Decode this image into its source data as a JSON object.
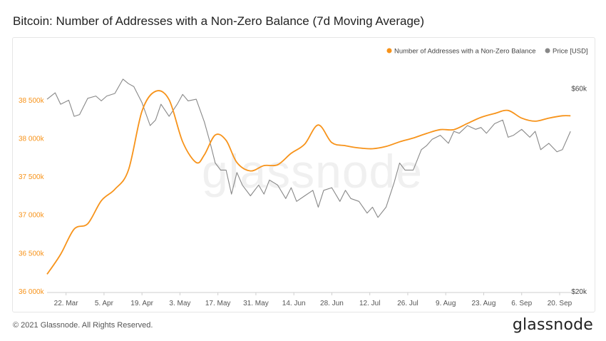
{
  "title": "Bitcoin: Number of Addresses with a Non-Zero Balance (7d Moving Average)",
  "footer": {
    "copyright": "© 2021 Glassnode. All Rights Reserved.",
    "logo": "glassnode"
  },
  "watermark": "glassnode",
  "colors": {
    "addresses": "#f7931a",
    "price": "#888888",
    "left_axis_text": "#f7931a",
    "right_axis_text": "#444444"
  },
  "chart_data": {
    "type": "line",
    "title": "Bitcoin: Number of Addresses with a Non-Zero Balance (7d Moving Average)",
    "legend_position": "top-right",
    "x_labels": [
      "22. Mar",
      "5. Apr",
      "19. Apr",
      "3. May",
      "17. May",
      "31. May",
      "14. Jun",
      "28. Jun",
      "12. Jul",
      "26. Jul",
      "9. Aug",
      "23. Aug",
      "6. Sep",
      "20. Sep"
    ],
    "x_range_days": [
      0,
      194
    ],
    "left_axis": {
      "ticks": [
        "36 000k",
        "36 500k",
        "37 000k",
        "37 500k",
        "38 000k",
        "38 500k"
      ],
      "tick_values": [
        36000,
        36500,
        37000,
        37500,
        38000,
        38500
      ],
      "ylim": [
        36000,
        38750
      ],
      "unit": "k"
    },
    "right_axis": {
      "ticks": [
        "$20k",
        "$60k"
      ],
      "tick_values": [
        20,
        60
      ],
      "ylim": [
        20,
        62.5
      ],
      "scale": "log",
      "unit": "k USD"
    },
    "series": [
      {
        "name": "Number of Addresses with a Non-Zero Balance",
        "axis": "left",
        "color": "#f7931a",
        "x": [
          0,
          5,
          10,
          15,
          20,
          25,
          30,
          35,
          40,
          45,
          50,
          55,
          58,
          62,
          66,
          70,
          75,
          80,
          85,
          90,
          95,
          100,
          105,
          110,
          115,
          120,
          125,
          130,
          135,
          140,
          145,
          150,
          155,
          160,
          165,
          170,
          175,
          180,
          185,
          190,
          193
        ],
        "values": [
          36220,
          36480,
          36810,
          36880,
          37180,
          37330,
          37580,
          38350,
          38610,
          38500,
          37950,
          37680,
          37780,
          38040,
          37970,
          37680,
          37570,
          37640,
          37650,
          37800,
          37920,
          38170,
          37940,
          37900,
          37870,
          37860,
          37890,
          37950,
          38000,
          38060,
          38110,
          38110,
          38190,
          38270,
          38320,
          38360,
          38260,
          38220,
          38260,
          38290,
          38290
        ]
      },
      {
        "name": "Price [USD]",
        "axis": "right",
        "color": "#888888",
        "x": [
          0,
          3,
          5,
          8,
          10,
          12,
          15,
          18,
          20,
          22,
          25,
          28,
          30,
          32,
          35,
          38,
          40,
          42,
          45,
          48,
          50,
          52,
          55,
          58,
          60,
          62,
          64,
          66,
          68,
          70,
          72,
          75,
          78,
          80,
          82,
          85,
          88,
          90,
          92,
          95,
          98,
          100,
          102,
          105,
          108,
          110,
          112,
          115,
          118,
          120,
          122,
          125,
          128,
          130,
          132,
          135,
          138,
          140,
          142,
          145,
          148,
          150,
          152,
          155,
          158,
          160,
          162,
          165,
          168,
          170,
          172,
          175,
          178,
          180,
          182,
          185,
          188,
          190,
          193
        ],
        "values": [
          56.5,
          58.5,
          55.0,
          56.2,
          51.5,
          52.0,
          56.8,
          57.5,
          56.0,
          57.5,
          58.3,
          63.0,
          61.5,
          60.5,
          55.5,
          49.0,
          50.5,
          55.0,
          51.5,
          55.0,
          58.0,
          56.0,
          56.5,
          50.0,
          45.0,
          40.0,
          38.5,
          38.5,
          33.8,
          38.0,
          35.5,
          33.5,
          35.5,
          33.8,
          36.5,
          35.5,
          33.0,
          35.0,
          32.5,
          33.5,
          34.5,
          31.5,
          34.5,
          35.0,
          32.5,
          34.5,
          33.0,
          32.5,
          30.5,
          31.5,
          29.8,
          31.5,
          36.0,
          40.0,
          38.5,
          38.5,
          43.0,
          44.0,
          45.5,
          46.5,
          44.5,
          47.5,
          47.0,
          49.0,
          48.0,
          48.5,
          47.0,
          49.5,
          50.5,
          46.0,
          46.5,
          48.0,
          46.0,
          47.5,
          43.0,
          44.5,
          42.5,
          43.0,
          47.5
        ]
      }
    ]
  }
}
